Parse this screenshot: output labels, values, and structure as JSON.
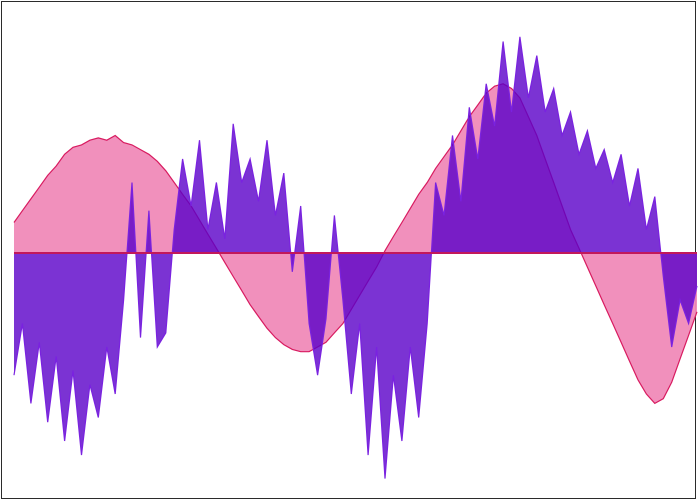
{
  "chart_data": {
    "type": "area",
    "title": "",
    "xlabel": "",
    "ylabel": "",
    "axes_visible": false,
    "grid": false,
    "legend": "none",
    "x_range": [
      0,
      100
    ],
    "y_range": [
      -1.0,
      1.0
    ],
    "baseline": 0,
    "series": [
      {
        "fill": "#f08ab8",
        "stroke": "#d81b60",
        "values": [
          0.13,
          0.18,
          0.23,
          0.28,
          0.33,
          0.37,
          0.42,
          0.45,
          0.46,
          0.48,
          0.49,
          0.48,
          0.5,
          0.47,
          0.46,
          0.44,
          0.42,
          0.39,
          0.35,
          0.3,
          0.25,
          0.2,
          0.14,
          0.08,
          0.02,
          -0.04,
          -0.1,
          -0.16,
          -0.22,
          -0.27,
          -0.32,
          -0.36,
          -0.39,
          -0.41,
          -0.42,
          -0.42,
          -0.4,
          -0.38,
          -0.34,
          -0.3,
          -0.24,
          -0.18,
          -0.12,
          -0.06,
          0.01,
          0.07,
          0.13,
          0.19,
          0.25,
          0.3,
          0.36,
          0.41,
          0.46,
          0.52,
          0.58,
          0.63,
          0.68,
          0.71,
          0.72,
          0.7,
          0.66,
          0.58,
          0.5,
          0.4,
          0.3,
          0.2,
          0.1,
          0.02,
          -0.06,
          -0.14,
          -0.22,
          -0.3,
          -0.38,
          -0.46,
          -0.54,
          -0.6,
          -0.64,
          -0.62,
          -0.55,
          -0.45,
          -0.35,
          -0.25
        ]
      },
      {
        "fill": "#5a00c8",
        "stroke": "#7a22e0",
        "values": [
          -0.52,
          -0.3,
          -0.64,
          -0.38,
          -0.72,
          -0.44,
          -0.8,
          -0.5,
          -0.86,
          -0.56,
          -0.7,
          -0.4,
          -0.6,
          -0.2,
          0.3,
          -0.36,
          0.18,
          -0.4,
          -0.34,
          0.1,
          0.4,
          0.2,
          0.48,
          0.1,
          0.3,
          0.06,
          0.55,
          0.3,
          0.4,
          0.22,
          0.48,
          0.16,
          0.34,
          -0.08,
          0.2,
          -0.3,
          -0.52,
          -0.28,
          0.16,
          -0.2,
          -0.6,
          -0.3,
          -0.86,
          -0.4,
          -0.96,
          -0.52,
          -0.8,
          -0.4,
          -0.7,
          -0.3,
          0.3,
          0.16,
          0.5,
          0.22,
          0.62,
          0.4,
          0.72,
          0.54,
          0.9,
          0.6,
          0.92,
          0.66,
          0.84,
          0.6,
          0.7,
          0.5,
          0.6,
          0.42,
          0.52,
          0.36,
          0.44,
          0.3,
          0.42,
          0.2,
          0.36,
          0.1,
          0.24,
          -0.1,
          -0.4,
          -0.2,
          -0.3,
          -0.14
        ]
      }
    ]
  }
}
